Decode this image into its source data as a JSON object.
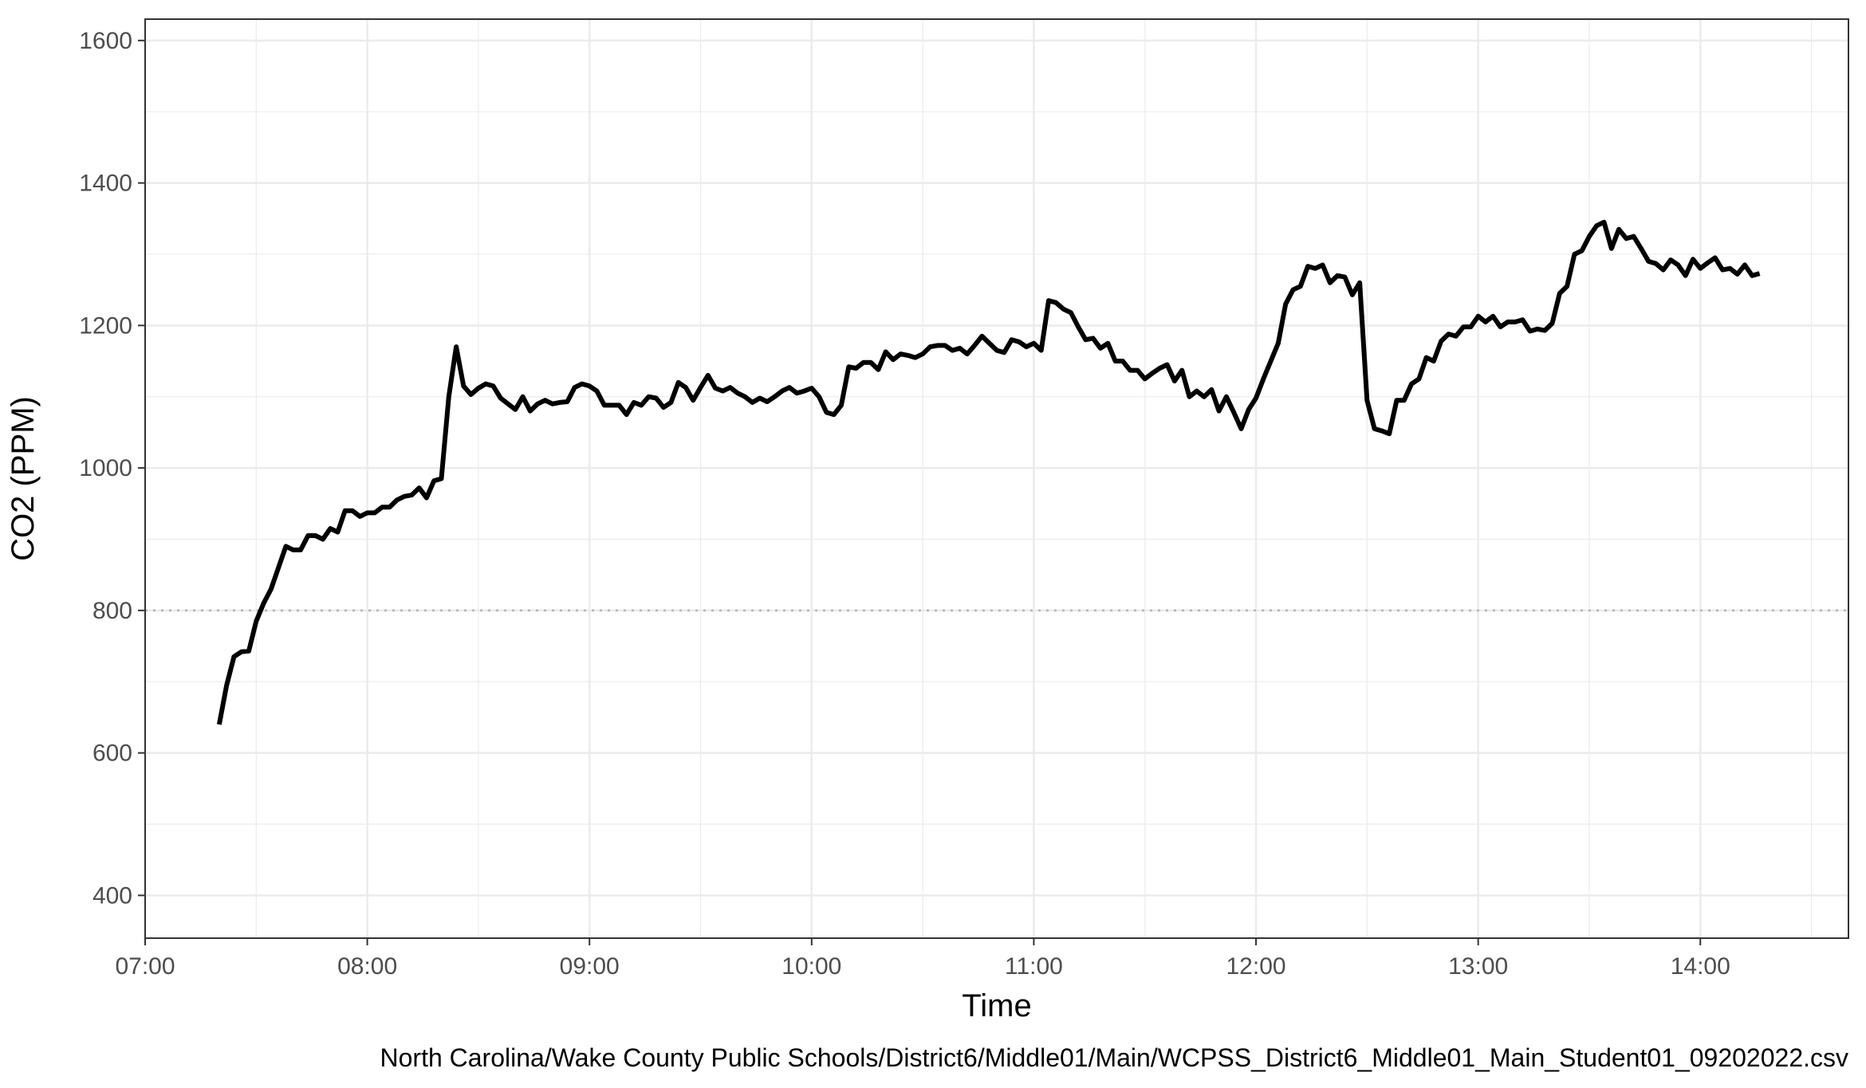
{
  "chart_data": {
    "type": "line",
    "xlabel": "Time",
    "ylabel": "CO2 (PPM)",
    "caption": "North Carolina/Wake County Public Schools/District6/Middle01/Main/WCPSS_District6_Middle01_Main_Student01_09202022.csv",
    "x_ticks": [
      "07:00",
      "08:00",
      "09:00",
      "10:00",
      "11:00",
      "12:00",
      "13:00",
      "14:00"
    ],
    "y_ticks": [
      400,
      600,
      800,
      1000,
      1200,
      1400,
      1600
    ],
    "xlim": [
      "07:00",
      "14:40"
    ],
    "ylim": [
      340,
      1630
    ],
    "reference_line": {
      "y": 800,
      "style": "dotted"
    },
    "grid": true,
    "line_color": "#000000",
    "series": [
      {
        "x": [
          "07:20",
          "07:22",
          "07:24",
          "07:26",
          "07:28",
          "07:30",
          "07:32",
          "07:34",
          "07:36",
          "07:38",
          "07:40",
          "07:42",
          "07:44",
          "07:46",
          "07:48",
          "07:50",
          "07:52",
          "07:54",
          "07:56",
          "07:58",
          "08:00",
          "08:02",
          "08:04",
          "08:06",
          "08:08",
          "08:10",
          "08:12",
          "08:14",
          "08:16",
          "08:18",
          "08:20",
          "08:22",
          "08:24",
          "08:26",
          "08:28",
          "08:30",
          "08:32",
          "08:34",
          "08:36",
          "08:38",
          "08:40",
          "08:42",
          "08:44",
          "08:46",
          "08:48",
          "08:50",
          "08:52",
          "08:54",
          "08:56",
          "08:58",
          "09:00",
          "09:02",
          "09:04",
          "09:06",
          "09:08",
          "09:10",
          "09:12",
          "09:14",
          "09:16",
          "09:18",
          "09:20",
          "09:22",
          "09:24",
          "09:26",
          "09:28",
          "09:30",
          "09:32",
          "09:34",
          "09:36",
          "09:38",
          "09:40",
          "09:42",
          "09:44",
          "09:46",
          "09:48",
          "09:50",
          "09:52",
          "09:54",
          "09:56",
          "09:58",
          "10:00",
          "10:02",
          "10:04",
          "10:06",
          "10:08",
          "10:10",
          "10:12",
          "10:14",
          "10:16",
          "10:18",
          "10:20",
          "10:22",
          "10:24",
          "10:26",
          "10:28",
          "10:30",
          "10:32",
          "10:34",
          "10:36",
          "10:38",
          "10:40",
          "10:42",
          "10:44",
          "10:46",
          "10:48",
          "10:50",
          "10:52",
          "10:54",
          "10:56",
          "10:58",
          "11:00",
          "11:02",
          "11:04",
          "11:06",
          "11:08",
          "11:10",
          "11:12",
          "11:14",
          "11:16",
          "11:18",
          "11:20",
          "11:22",
          "11:24",
          "11:26",
          "11:28",
          "11:30",
          "11:32",
          "11:34",
          "11:36",
          "11:38",
          "11:40",
          "11:42",
          "11:44",
          "11:46",
          "11:48",
          "11:50",
          "11:52",
          "11:54",
          "11:56",
          "11:58",
          "12:00",
          "12:02",
          "12:04",
          "12:06",
          "12:08",
          "12:10",
          "12:12",
          "12:14",
          "12:16",
          "12:18",
          "12:20",
          "12:22",
          "12:24",
          "12:26",
          "12:28",
          "12:30",
          "12:32",
          "12:34",
          "12:36",
          "12:38",
          "12:40",
          "12:42",
          "12:44",
          "12:46",
          "12:48",
          "12:50",
          "12:52",
          "12:54",
          "12:56",
          "12:58",
          "13:00",
          "13:02",
          "13:04",
          "13:06",
          "13:08",
          "13:10",
          "13:12",
          "13:14",
          "13:16",
          "13:18",
          "13:20",
          "13:22",
          "13:24",
          "13:26",
          "13:28",
          "13:30",
          "13:32",
          "13:34",
          "13:36",
          "13:38",
          "13:40",
          "13:42",
          "13:44",
          "13:46",
          "13:48",
          "13:50",
          "13:52",
          "13:54",
          "13:56",
          "13:58",
          "14:00",
          "14:02",
          "14:04",
          "14:06",
          "14:08",
          "14:10",
          "14:12",
          "14:14",
          "14:16"
        ],
        "values": [
          640,
          695,
          735,
          742,
          743,
          785,
          810,
          830,
          860,
          890,
          885,
          885,
          905,
          905,
          900,
          915,
          910,
          940,
          940,
          932,
          937,
          937,
          945,
          945,
          955,
          960,
          962,
          972,
          958,
          982,
          985,
          1100,
          1170,
          1115,
          1103,
          1112,
          1118,
          1115,
          1098,
          1090,
          1082,
          1100,
          1080,
          1090,
          1095,
          1090,
          1092,
          1093,
          1113,
          1118,
          1115,
          1108,
          1088,
          1088,
          1088,
          1075,
          1092,
          1088,
          1100,
          1098,
          1085,
          1092,
          1120,
          1113,
          1095,
          1113,
          1130,
          1112,
          1108,
          1113,
          1105,
          1100,
          1092,
          1098,
          1093,
          1100,
          1108,
          1113,
          1105,
          1108,
          1112,
          1100,
          1078,
          1075,
          1088,
          1142,
          1140,
          1148,
          1148,
          1138,
          1163,
          1152,
          1160,
          1158,
          1155,
          1160,
          1170,
          1172,
          1172,
          1165,
          1168,
          1160,
          1172,
          1185,
          1175,
          1165,
          1162,
          1180,
          1177,
          1170,
          1175,
          1165,
          1235,
          1232,
          1223,
          1218,
          1198,
          1180,
          1182,
          1168,
          1175,
          1150,
          1150,
          1137,
          1137,
          1125,
          1133,
          1140,
          1145,
          1122,
          1137,
          1100,
          1108,
          1100,
          1110,
          1080,
          1100,
          1078,
          1055,
          1082,
          1098,
          1125,
          1150,
          1175,
          1230,
          1250,
          1255,
          1283,
          1280,
          1285,
          1260,
          1270,
          1268,
          1243,
          1260,
          1095,
          1055,
          1052,
          1048,
          1095,
          1095,
          1118,
          1125,
          1155,
          1150,
          1178,
          1188,
          1185,
          1198,
          1198,
          1213,
          1205,
          1213,
          1198,
          1205,
          1205,
          1208,
          1192,
          1195,
          1193,
          1203,
          1245,
          1255,
          1300,
          1305,
          1325,
          1340,
          1345,
          1308,
          1335,
          1322,
          1325,
          1308,
          1290,
          1287,
          1278,
          1292,
          1285,
          1270,
          1293,
          1280,
          1288,
          1295,
          1278,
          1280,
          1272,
          1285,
          1270,
          1273
        ]
      }
    ]
  }
}
